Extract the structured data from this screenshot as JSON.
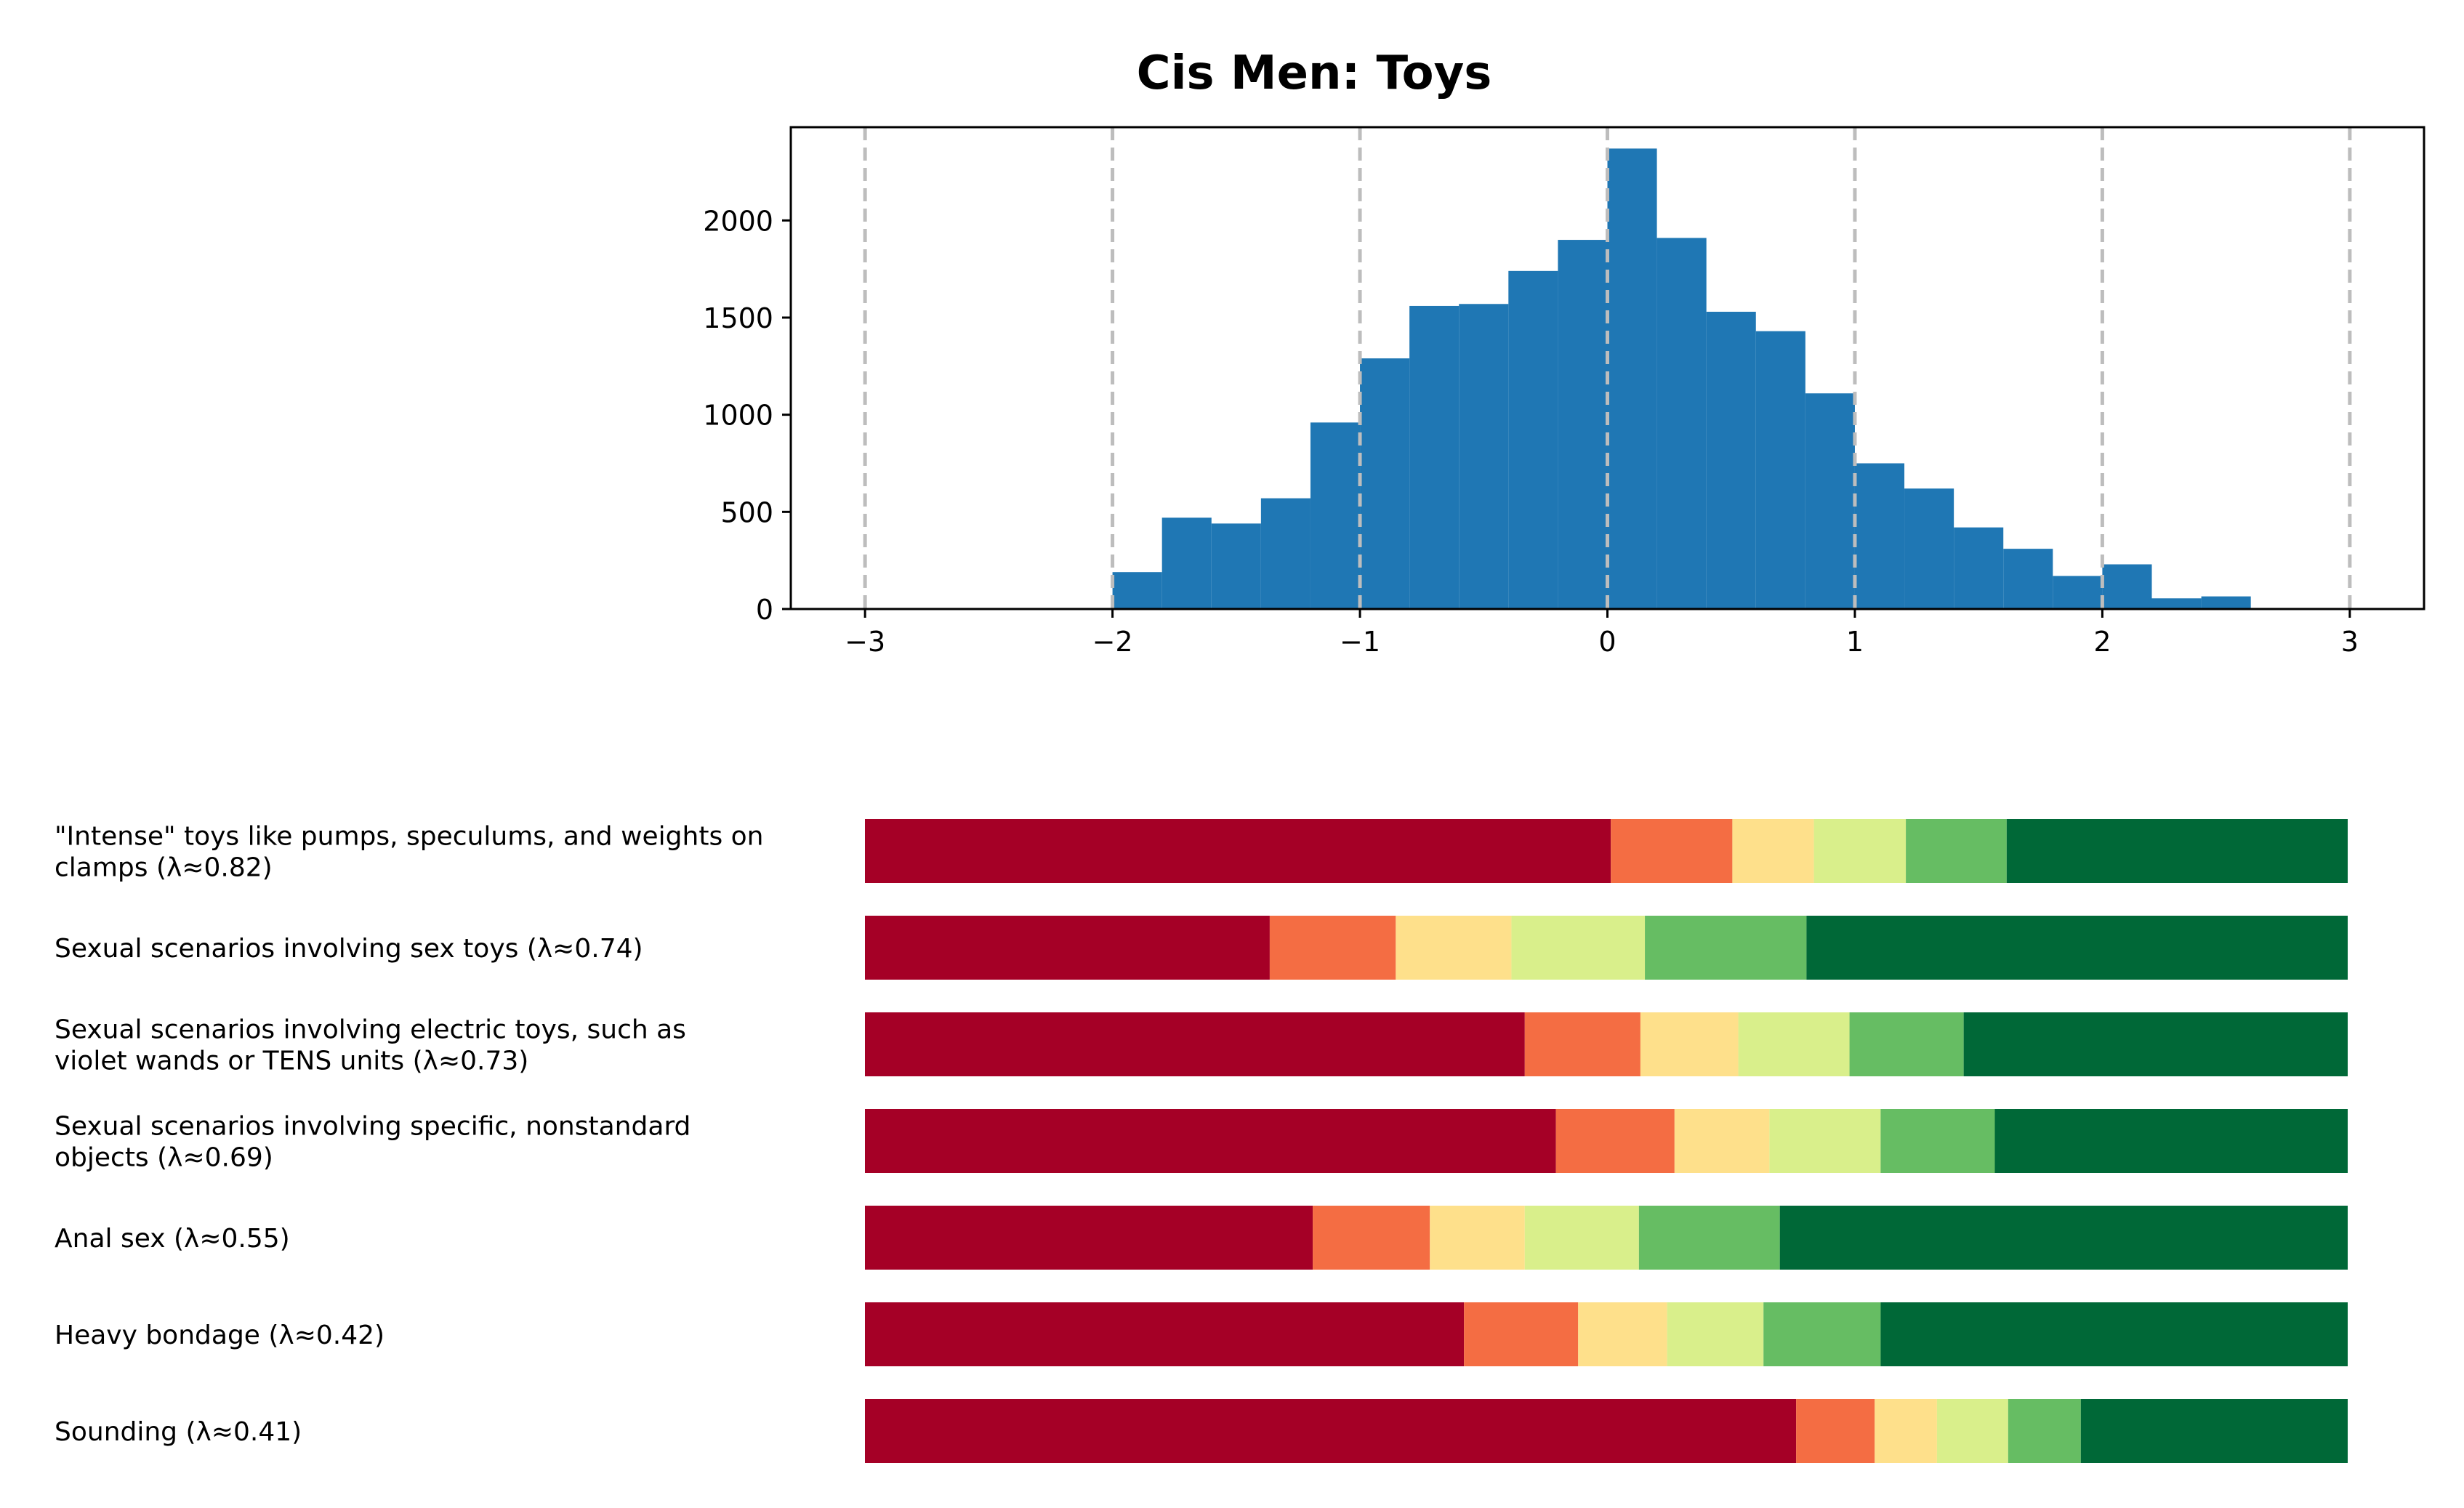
{
  "chart_data": [
    {
      "type": "bar",
      "title": "Cis Men: Toys",
      "xlabel": "",
      "ylabel": "",
      "xlim": [
        -3.3,
        3.3
      ],
      "ylim": [
        0,
        2480
      ],
      "xticks": [
        -3,
        -2,
        -1,
        0,
        1,
        2,
        3
      ],
      "xtick_labels": [
        "−3",
        "−2",
        "−1",
        "0",
        "1",
        "2",
        "3"
      ],
      "yticks": [
        0,
        500,
        1000,
        1500,
        2000
      ],
      "ytick_labels": [
        "0",
        "500",
        "1000",
        "1500",
        "2000"
      ],
      "grid": "vertical dashed at x ticks",
      "color": "#1f77b4",
      "bins": [
        {
          "x0": -2.0,
          "x1": -1.8,
          "count": 190
        },
        {
          "x0": -1.8,
          "x1": -1.6,
          "count": 470
        },
        {
          "x0": -1.6,
          "x1": -1.4,
          "count": 440
        },
        {
          "x0": -1.4,
          "x1": -1.2,
          "count": 570
        },
        {
          "x0": -1.2,
          "x1": -1.0,
          "count": 960
        },
        {
          "x0": -1.0,
          "x1": -0.8,
          "count": 1290
        },
        {
          "x0": -0.8,
          "x1": -0.6,
          "count": 1560
        },
        {
          "x0": -0.6,
          "x1": -0.4,
          "count": 1570
        },
        {
          "x0": -0.4,
          "x1": -0.2,
          "count": 1740
        },
        {
          "x0": -0.2,
          "x1": 0.0,
          "count": 1900
        },
        {
          "x0": 0.0,
          "x1": 0.2,
          "count": 2370
        },
        {
          "x0": 0.2,
          "x1": 0.4,
          "count": 1910
        },
        {
          "x0": 0.4,
          "x1": 0.6,
          "count": 1530
        },
        {
          "x0": 0.6,
          "x1": 0.8,
          "count": 1430
        },
        {
          "x0": 0.8,
          "x1": 1.0,
          "count": 1110
        },
        {
          "x0": 1.0,
          "x1": 1.2,
          "count": 750
        },
        {
          "x0": 1.2,
          "x1": 1.4,
          "count": 620
        },
        {
          "x0": 1.4,
          "x1": 1.6,
          "count": 420
        },
        {
          "x0": 1.6,
          "x1": 1.8,
          "count": 310
        },
        {
          "x0": 1.8,
          "x1": 2.0,
          "count": 170
        },
        {
          "x0": 2.0,
          "x1": 2.2,
          "count": 230
        },
        {
          "x0": 2.2,
          "x1": 2.4,
          "count": 55
        },
        {
          "x0": 2.4,
          "x1": 2.6,
          "count": 65
        }
      ]
    },
    {
      "type": "bar",
      "orientation": "horizontal-stacked",
      "xlim": [
        0,
        1
      ],
      "colors": [
        "#a50026",
        "#f46d43",
        "#fee08b",
        "#d9ef8b",
        "#66bd63",
        "#006837"
      ],
      "rows": [
        {
          "label_lines": [
            "\"Intense\" toys like pumps, speculums, and weights on",
            "clamps (λ≈0.82)"
          ],
          "values": [
            0.503,
            0.082,
            0.055,
            0.062,
            0.068,
            0.23
          ]
        },
        {
          "label_lines": [
            "Sexual scenarios involving sex toys (λ≈0.74)"
          ],
          "values": [
            0.273,
            0.085,
            0.078,
            0.09,
            0.109,
            0.365
          ]
        },
        {
          "label_lines": [
            "Sexual scenarios involving electric toys, such as",
            "violet wands or TENS units (λ≈0.73)"
          ],
          "values": [
            0.445,
            0.078,
            0.066,
            0.075,
            0.077,
            0.259
          ]
        },
        {
          "label_lines": [
            "Sexual scenarios involving specific, nonstandard",
            "objects (λ≈0.69)"
          ],
          "values": [
            0.466,
            0.08,
            0.064,
            0.075,
            0.077,
            0.238
          ]
        },
        {
          "label_lines": [
            "Anal sex (λ≈0.55)"
          ],
          "values": [
            0.302,
            0.079,
            0.064,
            0.077,
            0.095,
            0.383
          ]
        },
        {
          "label_lines": [
            "Heavy bondage (λ≈0.42)"
          ],
          "values": [
            0.404,
            0.077,
            0.06,
            0.065,
            0.079,
            0.315
          ]
        },
        {
          "label_lines": [
            "Sounding (λ≈0.41)"
          ],
          "values": [
            0.628,
            0.053,
            0.042,
            0.048,
            0.049,
            0.18
          ]
        }
      ]
    }
  ]
}
